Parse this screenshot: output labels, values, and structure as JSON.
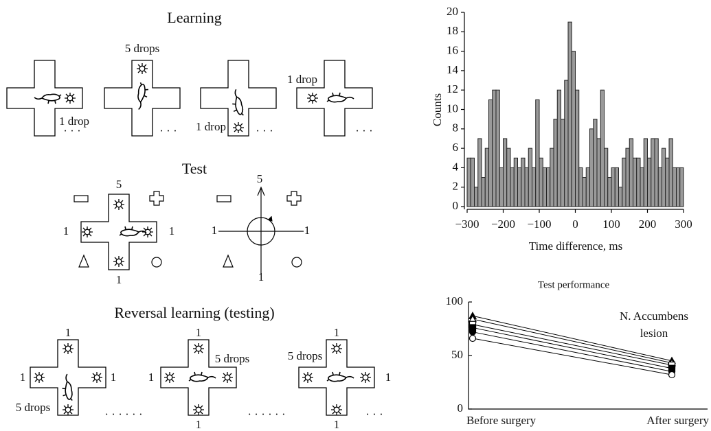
{
  "diagram": {
    "learning": {
      "title": "Learning",
      "labels": [
        "1 drop",
        "· · ·",
        "5 drops",
        "· · ·",
        "1 drop",
        "· · ·",
        "1 drop",
        "· · ·"
      ]
    },
    "test": {
      "title": "Test",
      "cross_labels": [
        "5",
        "1",
        "1",
        "1"
      ],
      "axes_labels": [
        "5",
        "1",
        "1",
        "1"
      ]
    },
    "reversal": {
      "title": "Reversal learning (testing)",
      "labels": [
        "1",
        "1",
        "1",
        "5 drops",
        "· · · · · ·",
        "1",
        "5 drops",
        "1",
        "1",
        "· · · · · ·",
        "5 drops",
        "1",
        "1",
        "1",
        "· · ·"
      ]
    }
  },
  "chart_data": [
    {
      "type": "histogram",
      "xlabel": "Time difference, ms",
      "ylabel": "Counts",
      "bins": [
        -300,
        -290,
        -280,
        -270,
        -260,
        -250,
        -240,
        -230,
        -220,
        -210,
        -200,
        -190,
        -180,
        -170,
        -160,
        -150,
        -140,
        -130,
        -120,
        -110,
        -100,
        -90,
        -80,
        -70,
        -60,
        -50,
        -40,
        -30,
        -20,
        -10,
        0,
        10,
        20,
        30,
        40,
        50,
        60,
        70,
        80,
        90,
        100,
        110,
        120,
        130,
        140,
        150,
        160,
        170,
        180,
        190,
        200,
        210,
        220,
        230,
        240,
        250,
        260,
        270,
        280,
        290,
        300
      ],
      "values": [
        5,
        5,
        2,
        7,
        3,
        6,
        11,
        12,
        12,
        4,
        7,
        6,
        4,
        5,
        4,
        5,
        4,
        6,
        4,
        11,
        5,
        4,
        4,
        6,
        9,
        12,
        9,
        13,
        19,
        16,
        12,
        4,
        3,
        4,
        8,
        9,
        7,
        12,
        6,
        3,
        4,
        4,
        2,
        5,
        6,
        7,
        5,
        5,
        4,
        7,
        5,
        7,
        7,
        4,
        6,
        5,
        7,
        4,
        4,
        4
      ],
      "color": "#9a9a9a",
      "edgecolor": "#222222",
      "xlim": [
        -300,
        300
      ],
      "xticks": [
        {
          "value": -300,
          "label": "−300"
        },
        {
          "value": -200,
          "label": "−200"
        },
        {
          "value": -100,
          "label": "−100"
        },
        0,
        100,
        200,
        300
      ],
      "ylim": [
        0,
        20
      ],
      "yticks": [
        0,
        2,
        4,
        6,
        8,
        10,
        12,
        14,
        16,
        18,
        20
      ]
    },
    {
      "type": "line",
      "title": "Test performance",
      "annotation": [
        "N. Accumbens",
        "lesion"
      ],
      "categories": [
        "Before surgery",
        "After surgery"
      ],
      "series": [
        {
          "color": "#000000",
          "marker": "triangle",
          "fill": "#000000",
          "values": [
            87,
            45
          ]
        },
        {
          "color": "#000000",
          "marker": "triangle",
          "fill": "#ffffff",
          "values": [
            84,
            43
          ]
        },
        {
          "color": "#000000",
          "marker": "square",
          "fill": "#ffffff",
          "values": [
            79,
            41
          ]
        },
        {
          "color": "#000000",
          "marker": "square",
          "fill": "#000000",
          "values": [
            76,
            38
          ]
        },
        {
          "color": "#000000",
          "marker": "circle",
          "fill": "#000000",
          "values": [
            72,
            35
          ]
        },
        {
          "color": "#000000",
          "marker": "circle",
          "fill": "#ffffff",
          "values": [
            66,
            32
          ]
        }
      ],
      "ylim": [
        0,
        100
      ],
      "yticks": [
        0,
        50,
        100
      ]
    }
  ]
}
